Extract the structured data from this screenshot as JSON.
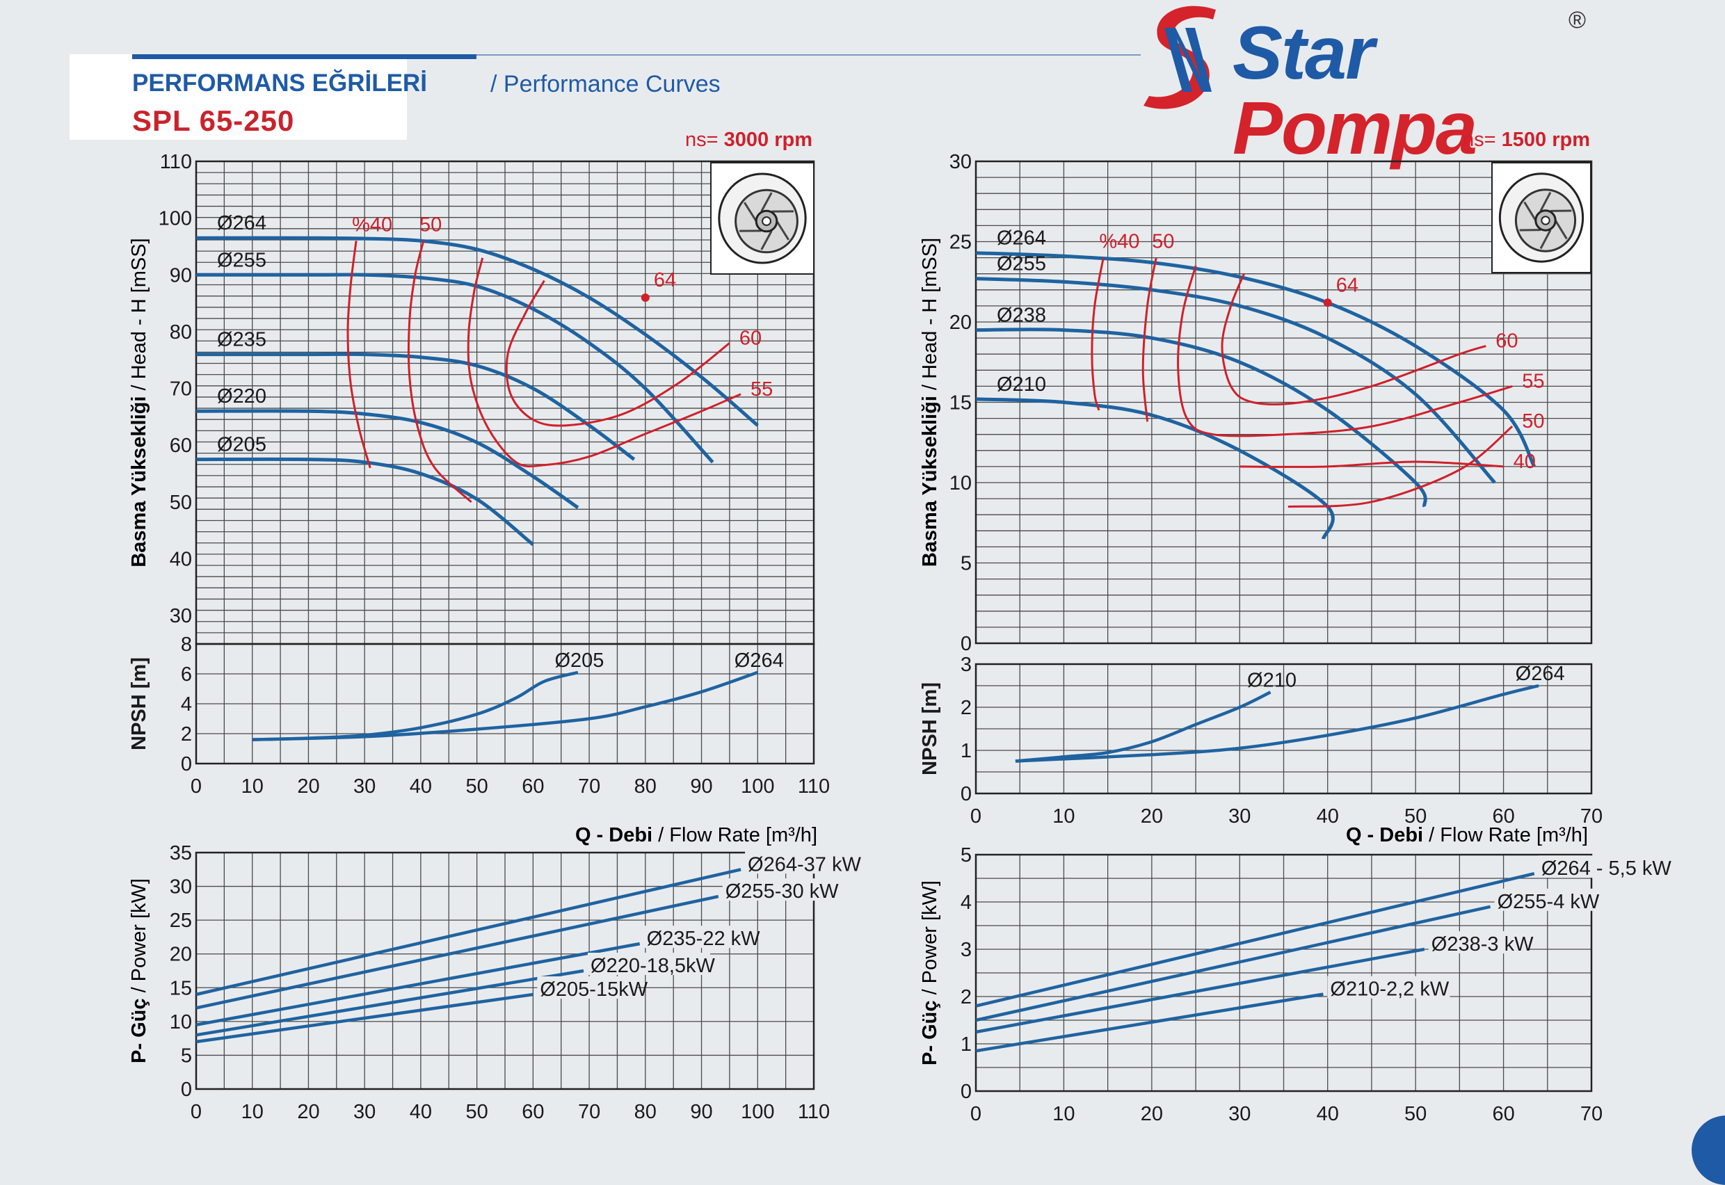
{
  "header": {
    "title_tr": "PERFORMANS EĞRİLERİ",
    "title_en": "/ Performance Curves",
    "model": "SPL 65-250"
  },
  "logo": {
    "word1": "Star",
    "word2": "Pompa",
    "registered": "®"
  },
  "colors": {
    "curve": "#1f63a0",
    "efficiency": "#d0202a",
    "grid": "#4a4a4a",
    "title_blue": "#1f5aa6",
    "brand_red": "#c8232c"
  },
  "labels": {
    "ns_prefix": "ns=",
    "head_axis_bold": "Basma Yüksekliği",
    "head_axis_rest": " / Head - H [mSS]",
    "npsh_axis": "NPSH [m]",
    "power_axis_bold": "P- Güç",
    "power_axis_rest": " / Power [kW]",
    "flow_axis_bold": "Q - Debi",
    "flow_axis_rest": " / Flow Rate [m³/h]"
  },
  "chart_data": [
    {
      "id": "left",
      "speed": "3000 rpm",
      "type": "line",
      "x_ticks": [
        0,
        10,
        20,
        30,
        40,
        50,
        60,
        70,
        80,
        90,
        100,
        110
      ],
      "head": {
        "xlim": [
          0,
          110
        ],
        "ylim": [
          25,
          110
        ],
        "y_ticks": [
          30,
          40,
          50,
          60,
          70,
          80,
          90,
          100,
          110
        ],
        "series": [
          {
            "name": "Ø264",
            "points": [
              [
                0,
                96.5
              ],
              [
                20,
                96.5
              ],
              [
                30,
                96.4
              ],
              [
                40,
                96
              ],
              [
                50,
                94.5
              ],
              [
                60,
                91
              ],
              [
                70,
                86
              ],
              [
                80,
                79.5
              ],
              [
                90,
                72
              ],
              [
                100,
                63.5
              ]
            ]
          },
          {
            "name": "Ø255",
            "points": [
              [
                0,
                90
              ],
              [
                20,
                90
              ],
              [
                30,
                90
              ],
              [
                40,
                89.5
              ],
              [
                50,
                88
              ],
              [
                60,
                84
              ],
              [
                70,
                78
              ],
              [
                80,
                70
              ],
              [
                92,
                57
              ]
            ]
          },
          {
            "name": "Ø235",
            "points": [
              [
                0,
                76
              ],
              [
                20,
                76
              ],
              [
                30,
                76
              ],
              [
                40,
                75.5
              ],
              [
                50,
                74
              ],
              [
                60,
                70
              ],
              [
                70,
                63.5
              ],
              [
                78,
                57.5
              ]
            ]
          },
          {
            "name": "Ø220",
            "points": [
              [
                0,
                66
              ],
              [
                20,
                66
              ],
              [
                30,
                65.5
              ],
              [
                40,
                64
              ],
              [
                50,
                60.5
              ],
              [
                60,
                54.5
              ],
              [
                68,
                49
              ]
            ]
          },
          {
            "name": "Ø205",
            "points": [
              [
                0,
                57.5
              ],
              [
                20,
                57.5
              ],
              [
                30,
                57
              ],
              [
                40,
                55
              ],
              [
                50,
                50.5
              ],
              [
                60,
                42.5
              ]
            ]
          }
        ],
        "efficiency": [
          {
            "label": "%40",
            "points": [
              [
                28.5,
                96
              ],
              [
                27.5,
                88
              ],
              [
                27,
                80
              ],
              [
                27.5,
                71
              ],
              [
                29,
                63
              ],
              [
                31,
                56
              ]
            ]
          },
          {
            "label": "50",
            "points": [
              [
                40.5,
                96
              ],
              [
                39,
                90
              ],
              [
                38,
                82
              ],
              [
                38,
                72
              ],
              [
                39.5,
                63
              ],
              [
                42.5,
                56
              ],
              [
                49,
                50
              ]
            ]
          },
          {
            "label": "55",
            "points": [
              [
                51,
                93
              ],
              [
                49.5,
                87
              ],
              [
                48.5,
                79
              ],
              [
                49,
                71
              ],
              [
                52,
                63
              ],
              [
                57,
                57
              ],
              [
                62,
                56.5
              ],
              [
                70,
                58
              ],
              [
                80,
                62
              ],
              [
                90,
                66
              ],
              [
                97,
                69
              ]
            ]
          },
          {
            "label": "60",
            "points": [
              [
                62,
                89
              ],
              [
                58.5,
                83
              ],
              [
                55.5,
                76
              ],
              [
                56,
                69
              ],
              [
                60,
                64.5
              ],
              [
                66,
                63.5
              ],
              [
                76,
                65.5
              ],
              [
                86,
                71
              ],
              [
                95,
                78
              ]
            ]
          }
        ],
        "efficiency_point": {
          "label": "64",
          "x": 80,
          "y": 86
        }
      },
      "npsh": {
        "xlim": [
          0,
          110
        ],
        "ylim": [
          0,
          8
        ],
        "y_ticks": [
          0,
          2,
          4,
          6,
          8
        ],
        "series": [
          {
            "name": "Ø205",
            "points": [
              [
                10,
                1.6
              ],
              [
                20,
                1.7
              ],
              [
                30,
                1.9
              ],
              [
                40,
                2.4
              ],
              [
                50,
                3.3
              ],
              [
                57,
                4.4
              ],
              [
                62,
                5.5
              ],
              [
                68,
                6.1
              ]
            ]
          },
          {
            "name": "Ø264",
            "points": [
              [
                10,
                1.6
              ],
              [
                30,
                1.8
              ],
              [
                50,
                2.3
              ],
              [
                70,
                3.0
              ],
              [
                80,
                3.8
              ],
              [
                90,
                4.8
              ],
              [
                100,
                6.1
              ]
            ]
          }
        ]
      },
      "power": {
        "xlim": [
          0,
          110
        ],
        "ylim": [
          0,
          35
        ],
        "y_ticks": [
          0,
          5,
          10,
          15,
          20,
          25,
          30,
          35
        ],
        "series": [
          {
            "name": "Ø264-37 kW",
            "points": [
              [
                0,
                14
              ],
              [
                97,
                32.5
              ]
            ]
          },
          {
            "name": "Ø255-30 kW",
            "points": [
              [
                0,
                12
              ],
              [
                93,
                28.5
              ]
            ]
          },
          {
            "name": "Ø235-22 kW",
            "points": [
              [
                0,
                9.5
              ],
              [
                79,
                21.5
              ]
            ]
          },
          {
            "name": "Ø220-18,5kW",
            "points": [
              [
                0,
                8
              ],
              [
                69,
                17.5
              ]
            ]
          },
          {
            "name": "Ø205-15kW",
            "points": [
              [
                0,
                7
              ],
              [
                60,
                14
              ]
            ]
          }
        ]
      }
    },
    {
      "id": "right",
      "speed": "1500 rpm",
      "type": "line",
      "x_ticks": [
        0,
        10,
        20,
        30,
        40,
        50,
        60,
        70
      ],
      "head": {
        "xlim": [
          0,
          70
        ],
        "ylim": [
          0,
          30
        ],
        "y_ticks": [
          0,
          5,
          10,
          15,
          20,
          25,
          30
        ],
        "series": [
          {
            "name": "Ø264",
            "points": [
              [
                0,
                24.3
              ],
              [
                10,
                24.1
              ],
              [
                20,
                23.7
              ],
              [
                30,
                22.8
              ],
              [
                40,
                21.2
              ],
              [
                50,
                18.5
              ],
              [
                60,
                14.5
              ],
              [
                63.5,
                11
              ]
            ]
          },
          {
            "name": "Ø255",
            "points": [
              [
                0,
                22.7
              ],
              [
                10,
                22.5
              ],
              [
                20,
                22
              ],
              [
                30,
                21
              ],
              [
                40,
                19
              ],
              [
                50,
                15.5
              ],
              [
                59,
                10
              ]
            ]
          },
          {
            "name": "Ø238",
            "points": [
              [
                0,
                19.5
              ],
              [
                10,
                19.5
              ],
              [
                20,
                19
              ],
              [
                30,
                17.5
              ],
              [
                40,
                14.5
              ],
              [
                50,
                10
              ],
              [
                51,
                8.5
              ]
            ]
          },
          {
            "name": "Ø210",
            "points": [
              [
                0,
                15.2
              ],
              [
                10,
                15
              ],
              [
                20,
                14.2
              ],
              [
                30,
                12
              ],
              [
                40,
                8.5
              ],
              [
                39.5,
                6.5
              ]
            ]
          }
        ],
        "efficiency": [
          {
            "label": "%40",
            "points": [
              [
                14.5,
                24
              ],
              [
                13.5,
                21
              ],
              [
                13.2,
                18
              ],
              [
                13.5,
                15.5
              ],
              [
                14,
                14.5
              ]
            ]
          },
          {
            "label": "50",
            "points": [
              [
                20.5,
                24
              ],
              [
                19.5,
                21
              ],
              [
                19,
                17
              ],
              [
                19.5,
                13.8
              ]
            ]
          },
          {
            "label": "55",
            "points": [
              [
                25,
                23.5
              ],
              [
                23.5,
                20.5
              ],
              [
                23,
                17
              ],
              [
                24,
                14
              ],
              [
                27,
                13
              ],
              [
                35,
                13
              ],
              [
                45,
                13.5
              ],
              [
                55,
                15
              ],
              [
                61,
                16
              ]
            ]
          },
          {
            "label": "60",
            "points": [
              [
                30.5,
                23
              ],
              [
                29,
                21
              ],
              [
                28,
                18.5
              ],
              [
                29,
                16
              ],
              [
                31.5,
                15
              ],
              [
                37,
                15
              ],
              [
                45,
                16
              ],
              [
                55,
                18
              ],
              [
                58,
                18.5
              ]
            ]
          },
          {
            "label": "40",
            "points": [
              [
                30,
                11
              ],
              [
                40,
                11
              ],
              [
                50,
                11.3
              ],
              [
                60,
                11
              ]
            ]
          },
          {
            "label": "50",
            "points": [
              [
                35.5,
                8.5
              ],
              [
                45,
                8.8
              ],
              [
                55,
                10.8
              ],
              [
                61,
                13.5
              ]
            ]
          }
        ],
        "efficiency_point": {
          "label": "64",
          "x": 40,
          "y": 21.2
        }
      },
      "npsh": {
        "xlim": [
          0,
          70
        ],
        "ylim": [
          0,
          3
        ],
        "y_ticks": [
          0,
          1,
          2,
          3
        ],
        "series": [
          {
            "name": "Ø210",
            "points": [
              [
                4.5,
                0.75
              ],
              [
                10,
                0.85
              ],
              [
                15,
                0.95
              ],
              [
                20,
                1.2
              ],
              [
                25,
                1.6
              ],
              [
                30,
                2.0
              ],
              [
                33.5,
                2.35
              ]
            ]
          },
          {
            "name": "Ø264",
            "points": [
              [
                4.5,
                0.75
              ],
              [
                20,
                0.9
              ],
              [
                30,
                1.05
              ],
              [
                40,
                1.35
              ],
              [
                50,
                1.75
              ],
              [
                60,
                2.3
              ],
              [
                64,
                2.5
              ]
            ]
          }
        ]
      },
      "power": {
        "xlim": [
          0,
          70
        ],
        "ylim": [
          0,
          5
        ],
        "y_ticks": [
          0,
          1,
          2,
          3,
          4,
          5
        ],
        "series": [
          {
            "name": "Ø264 - 5,5 kW",
            "points": [
              [
                0,
                1.8
              ],
              [
                63.5,
                4.6
              ]
            ]
          },
          {
            "name": "Ø255-4 kW",
            "points": [
              [
                0,
                1.5
              ],
              [
                58.5,
                3.9
              ]
            ]
          },
          {
            "name": "Ø238-3 kW",
            "points": [
              [
                0,
                1.25
              ],
              [
                51,
                3.0
              ]
            ]
          },
          {
            "name": "Ø210-2,2 kW",
            "points": [
              [
                0,
                0.85
              ],
              [
                39.5,
                2.05
              ]
            ]
          }
        ]
      }
    }
  ]
}
